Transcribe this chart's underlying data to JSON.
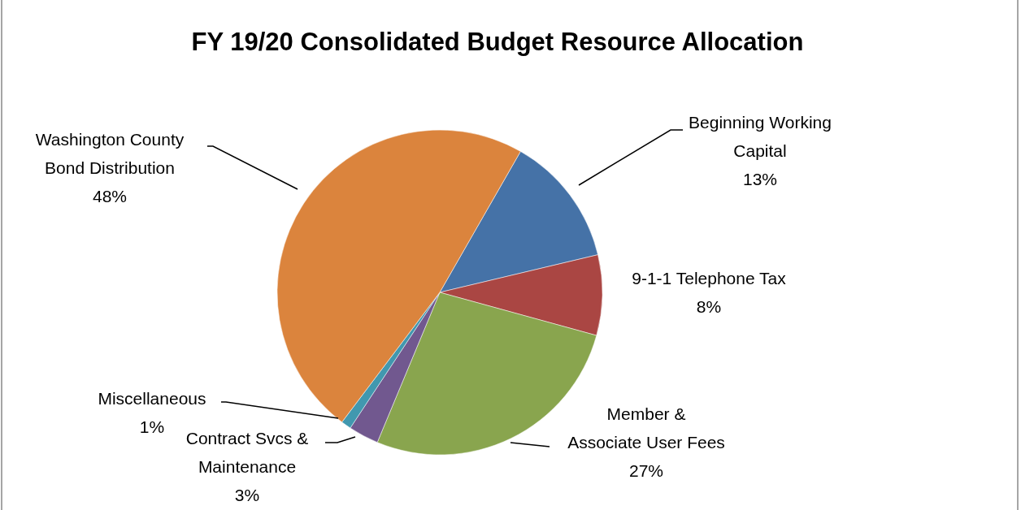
{
  "chart_data": {
    "type": "pie",
    "title": "FY 19/20 Consolidated Budget Resource Allocation",
    "categories": [
      "Beginning Working Capital",
      "9-1-1 Telephone Tax",
      "Member & Associate User Fees",
      "Contract Svcs & Maintenance",
      "Miscellaneous",
      "Washington County Bond Distribution"
    ],
    "values": [
      13,
      8,
      27,
      3,
      1,
      48
    ],
    "value_labels": [
      "13%",
      "8%",
      "27%",
      "3%",
      "1%",
      "48%"
    ],
    "colors": [
      "#4572a7",
      "#aa4643",
      "#89a54e",
      "#71588f",
      "#4198af",
      "#db843d"
    ],
    "legend": false
  }
}
